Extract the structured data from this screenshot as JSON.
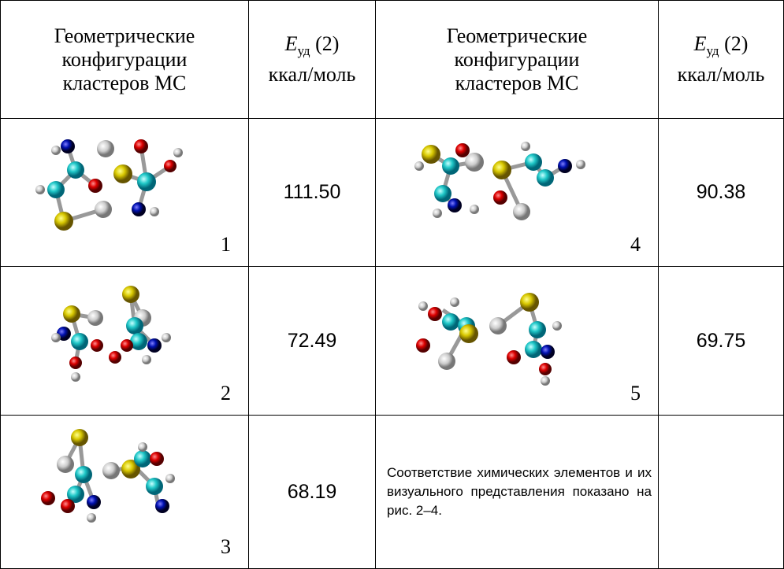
{
  "table": {
    "header": [
      {
        "lines": [
          "Геометрические",
          "конфигурации",
          "кластеров МС"
        ]
      },
      {
        "symbol": "E",
        "subscript": "уд",
        "suffix": "(2)",
        "unit": "ккал/моль"
      },
      {
        "lines": [
          "Геометрические",
          "конфигурации",
          "кластеров МС"
        ]
      },
      {
        "symbol": "E",
        "subscript": "уд",
        "suffix": "(2)",
        "unit": "ккал/моль"
      }
    ],
    "rows": [
      {
        "left": {
          "label": "1",
          "value": "111.50"
        },
        "right": {
          "label": "4",
          "value": "90.38"
        }
      },
      {
        "left": {
          "label": "2",
          "value": "72.49"
        },
        "right": {
          "label": "5",
          "value": "69.75"
        }
      },
      {
        "left": {
          "label": "3",
          "value": "68.19"
        },
        "note": "Соответствие химических элементов и их визуального представления показано на рис. 2–4."
      }
    ]
  }
}
